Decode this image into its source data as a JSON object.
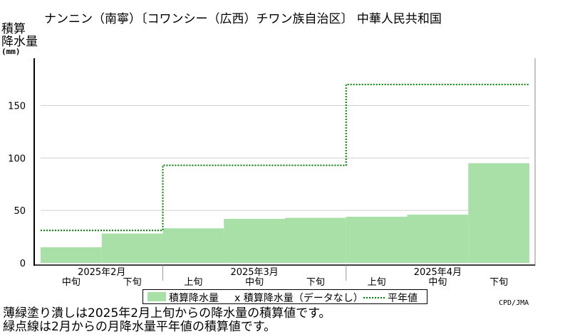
{
  "title": "ナンニン（南寧）〔コワンシー（広西）チワン族自治区〕 中華人民共和国",
  "ylabel_line1": "積算",
  "ylabel_line2": "降水量",
  "ylabel_unit": "(mm)",
  "legend": {
    "bar_label": "積算降水量",
    "missing_label": "x 積算降水量（データなし）",
    "line_label": "平年値"
  },
  "credit": "CPD/JMA",
  "notes": [
    "薄緑塗り潰しは2025年2月上旬からの降水量の積算値です。",
    "緑点線は2月からの月降水量平年値の積算値です。"
  ],
  "colors": {
    "bar": "#a8e0a8",
    "normal_line": "#008000",
    "grid": "#d0d0d0"
  },
  "chart_data": {
    "type": "bar",
    "title": "ナンニン（南寧）〔コワンシー（広西）チワン族自治区〕 中華人民共和国",
    "ylabel": "積算降水量 (mm)",
    "ylim": [
      0,
      195
    ],
    "yticks": [
      0,
      50,
      100,
      150
    ],
    "grid": true,
    "legend_position": "bottom",
    "categories": [
      "2025年2月 中旬",
      "2025年2月 下旬",
      "2025年3月 上旬",
      "2025年3月 中旬",
      "2025年3月 下旬",
      "2025年4月 上旬",
      "2025年4月 中旬",
      "2025年4月 下旬"
    ],
    "decade_labels": [
      "中旬",
      "下旬",
      "上旬",
      "中旬",
      "下旬",
      "上旬",
      "中旬",
      "下旬"
    ],
    "months": [
      {
        "label": "2025年2月",
        "decades": 2
      },
      {
        "label": "2025年3月",
        "decades": 3
      },
      {
        "label": "2025年4月",
        "decades": 3
      }
    ],
    "series": [
      {
        "name": "積算降水量",
        "values": [
          15,
          28,
          33,
          42,
          43,
          44,
          46,
          95
        ]
      },
      {
        "name": "平年値",
        "values": [
          31,
          31,
          93,
          93,
          93,
          170,
          170,
          170
        ]
      }
    ]
  }
}
